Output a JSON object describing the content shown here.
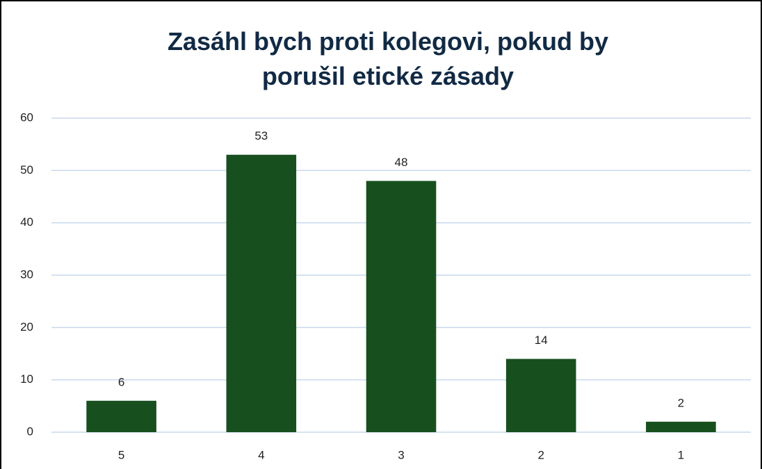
{
  "chart_data": {
    "type": "bar",
    "title": "Zasáhl bych proti kolegovi, pokud by porušil etické zásady",
    "categories": [
      "5",
      "4",
      "3",
      "2",
      "1"
    ],
    "values": [
      6,
      53,
      48,
      14,
      2
    ],
    "color": "#17501e",
    "ylim": [
      0,
      60
    ],
    "yticks": [
      0,
      10,
      20,
      30,
      40,
      50,
      60
    ],
    "grid": true
  }
}
